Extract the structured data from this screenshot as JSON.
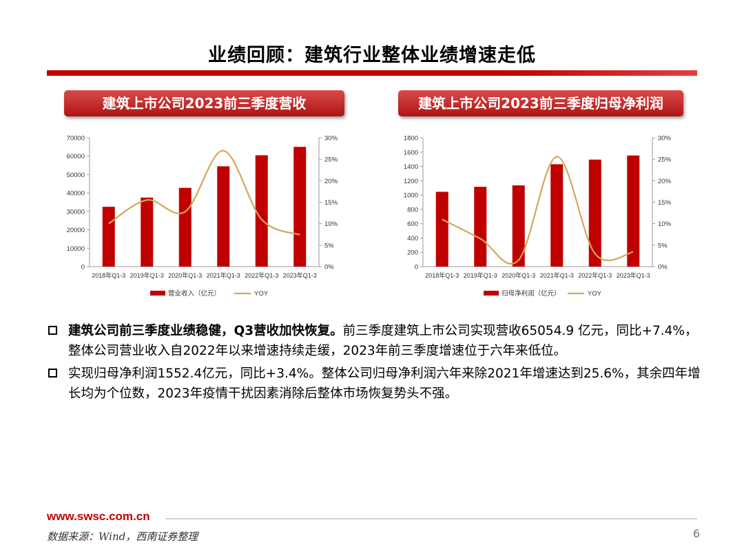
{
  "title": "业绩回顾：建筑行业整体业绩增速走低",
  "colors": {
    "accent": "#c00000",
    "bar": "#c00000",
    "line": "#d4a65a"
  },
  "charts": {
    "left": {
      "banner": "建筑上市公司2023前三季度营收"
    },
    "right": {
      "banner": "建筑上市公司2023前三季度归母净利润"
    }
  },
  "chart_data": [
    {
      "type": "bar",
      "title": "建筑上市公司2023前三季度营收",
      "categories": [
        "2018年Q1-3",
        "2019年Q1-3",
        "2020年Q1-3",
        "2021年Q1-3",
        "2022年Q1-3",
        "2023年Q1-3"
      ],
      "series": [
        {
          "name": "营业收入（亿元）",
          "type": "bar",
          "axis": "left",
          "values": [
            32500,
            37500,
            42800,
            54500,
            60500,
            65054.9
          ]
        },
        {
          "name": "YOY",
          "type": "line",
          "axis": "right",
          "values": [
            10.0,
            15.5,
            12.8,
            27.0,
            11.0,
            7.4
          ]
        }
      ],
      "yticks": [
        "0",
        "10000",
        "20000",
        "30000",
        "40000",
        "50000",
        "60000",
        "70000"
      ],
      "y2ticks": [
        "0%",
        "5%",
        "10%",
        "15%",
        "20%",
        "25%",
        "30%"
      ],
      "ylim": [
        0,
        70000
      ],
      "y2lim": [
        0,
        30
      ],
      "legend_position": "bottom"
    },
    {
      "type": "bar",
      "title": "建筑上市公司2023前三季度归母净利润",
      "categories": [
        "2018年Q1-3",
        "2019年Q1-3",
        "2020年Q1-3",
        "2021年Q1-3",
        "2022年Q1-3",
        "2023年Q1-3"
      ],
      "series": [
        {
          "name": "归母净利润（亿元）",
          "type": "bar",
          "axis": "left",
          "values": [
            1045,
            1115,
            1135,
            1430,
            1495,
            1552.4
          ]
        },
        {
          "name": "YOY",
          "type": "line",
          "axis": "right",
          "values": [
            11.0,
            6.5,
            1.5,
            25.6,
            3.0,
            3.4
          ]
        }
      ],
      "yticks": [
        "0",
        "200",
        "400",
        "600",
        "800",
        "1000",
        "1200",
        "1400",
        "1600",
        "1800"
      ],
      "y2ticks": [
        "0%",
        "5%",
        "10%",
        "15%",
        "20%",
        "25%",
        "30%"
      ],
      "ylim": [
        0,
        1800
      ],
      "y2lim": [
        0,
        30
      ],
      "legend_position": "bottom"
    }
  ],
  "bullets": [
    {
      "lead": "建筑公司前三季度业绩稳健，Q3营收加快恢复。",
      "text": "前三季度建筑上市公司实现营收65054.9 亿元，同比+7.4%，整体公司营业收入自2022年以来增速持续走缓，2023年前三季度增速位于六年来低位。"
    },
    {
      "lead": "",
      "text": "实现归母净利润1552.4亿元，同比+3.4%。整体公司归母净利润六年来除2021年增速达到25.6%，其余四年增长均为个位数，2023年疫情干扰因素消除后整体市场恢复势头不强。"
    }
  ],
  "footer": {
    "url": "www.swsc.com.cn",
    "source": "数据来源：Wind，西南证券整理",
    "page": "6"
  }
}
